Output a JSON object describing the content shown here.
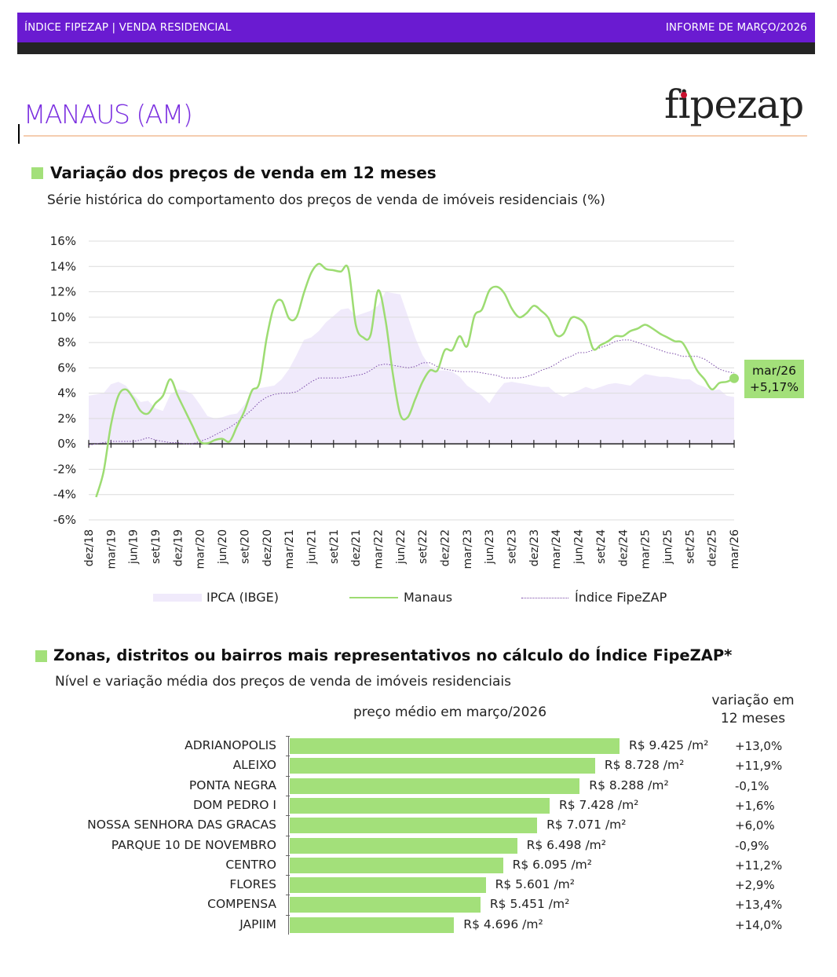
{
  "header": {
    "left_label": "ÍNDICE FIPEZAP | VENDA RESIDENCIAL",
    "right_label": "INFORME DE MARÇO/2026",
    "brand_color": "#6a1bd1"
  },
  "page": {
    "city_title": "MANAUS (AM)",
    "logo_text": "fipezap"
  },
  "section1": {
    "title": "Variação dos preços de venda em 12 meses",
    "subtitle": "Série histórica do comportamento dos preços de venda de imóveis residenciais (%)"
  },
  "chart_data": [
    {
      "type": "line",
      "yticks": [
        "16%",
        "14%",
        "12%",
        "10%",
        "8%",
        "6%",
        "4%",
        "2%",
        "0%",
        "-2%",
        "-4%",
        "-6%"
      ],
      "ylim": [
        -6,
        16
      ],
      "grid": true,
      "xtick_labels": [
        "dez/18",
        "mar/19",
        "jun/19",
        "set/19",
        "dez/19",
        "mar/20",
        "jun/20",
        "set/20",
        "dez/20",
        "mar/21",
        "jun/21",
        "set/21",
        "dez/21",
        "mar/22",
        "jun/22",
        "set/22",
        "dez/22",
        "mar/23",
        "jun/23",
        "set/23",
        "dez/23",
        "mar/24",
        "jun/24",
        "set/24",
        "dez/24",
        "mar/25",
        "jun/25",
        "set/25",
        "dez/25",
        "mar/26"
      ],
      "x_start": "dez/18",
      "x_end": "mar/26",
      "x_frequency": "monthly",
      "legend_position": "bottom",
      "series": [
        {
          "name": "IPCA (IBGE)",
          "kind": "area",
          "color": "#f0eafb",
          "values": [
            3.8,
            3.9,
            4.0,
            4.7,
            4.9,
            4.6,
            3.9,
            3.3,
            3.4,
            2.8,
            2.6,
            3.9,
            4.3,
            4.2,
            3.9,
            3.1,
            2.2,
            2.0,
            2.1,
            2.3,
            2.4,
            3.1,
            4.2,
            4.4,
            4.5,
            4.6,
            5.1,
            5.9,
            7.0,
            8.2,
            8.4,
            8.9,
            9.6,
            10.1,
            10.6,
            10.7,
            10.1,
            10.3,
            10.5,
            10.9,
            12.0,
            11.9,
            11.8,
            10.1,
            8.4,
            7.0,
            6.1,
            5.8,
            5.8,
            5.7,
            5.3,
            4.6,
            4.2,
            3.8,
            3.2,
            4.1,
            4.8,
            4.9,
            4.8,
            4.7,
            4.6,
            4.5,
            4.5,
            4.0,
            3.7,
            4.0,
            4.2,
            4.5,
            4.3,
            4.5,
            4.7,
            4.8,
            4.7,
            4.6,
            5.1,
            5.5,
            5.4,
            5.3,
            5.3,
            5.2,
            5.1,
            5.1,
            4.7,
            4.5,
            4.2,
            4.3,
            3.8,
            3.7
          ]
        },
        {
          "name": "Manaus",
          "kind": "line",
          "color": "#9ddc72",
          "values": [
            null,
            -4.2,
            -2.2,
            1.5,
            3.8,
            4.3,
            3.6,
            2.6,
            2.4,
            3.2,
            3.8,
            5.1,
            3.8,
            2.6,
            1.4,
            0.2,
            0.05,
            0.3,
            0.4,
            0.2,
            1.4,
            2.6,
            4.2,
            4.8,
            8.4,
            10.9,
            11.3,
            9.9,
            10.0,
            11.9,
            13.5,
            14.2,
            13.8,
            13.7,
            13.6,
            13.8,
            9.4,
            8.4,
            8.6,
            12.1,
            9.8,
            5.5,
            2.3,
            2.1,
            3.5,
            4.9,
            5.8,
            5.8,
            7.4,
            7.4,
            8.5,
            7.7,
            10.1,
            10.6,
            12.1,
            12.4,
            11.9,
            10.7,
            10.0,
            10.3,
            10.9,
            10.5,
            9.9,
            8.6,
            8.7,
            9.9,
            9.9,
            9.3,
            7.5,
            7.8,
            8.1,
            8.5,
            8.5,
            8.9,
            9.1,
            9.4,
            9.1,
            8.7,
            8.4,
            8.1,
            8.0,
            7.0,
            5.8,
            5.1,
            4.3,
            4.8,
            4.9,
            5.17
          ]
        },
        {
          "name": "Índice FipeZAP",
          "kind": "dotted",
          "color": "#7a4aa8",
          "values": [
            -0.1,
            0,
            0.1,
            0.2,
            0.2,
            0.2,
            0.2,
            0.3,
            0.5,
            0.3,
            0.2,
            0.1,
            0.1,
            0,
            0,
            0.2,
            0.4,
            0.7,
            1.0,
            1.3,
            1.7,
            2.2,
            2.7,
            3.3,
            3.7,
            3.9,
            4.0,
            4.0,
            4.1,
            4.5,
            4.9,
            5.2,
            5.2,
            5.2,
            5.2,
            5.3,
            5.4,
            5.5,
            5.8,
            6.2,
            6.3,
            6.2,
            6.1,
            6.0,
            6.1,
            6.4,
            6.4,
            6.1,
            5.9,
            5.8,
            5.7,
            5.7,
            5.7,
            5.6,
            5.5,
            5.4,
            5.2,
            5.2,
            5.2,
            5.3,
            5.5,
            5.8,
            6.0,
            6.3,
            6.7,
            6.9,
            7.2,
            7.2,
            7.4,
            7.6,
            7.8,
            8.1,
            8.2,
            8.2,
            8.0,
            7.8,
            7.6,
            7.4,
            7.2,
            7.1,
            6.9,
            6.9,
            6.9,
            6.7,
            6.3,
            5.9,
            5.7,
            5.6
          ]
        }
      ],
      "annotation": {
        "label": "mar/26",
        "value": "+5,17%"
      }
    },
    {
      "type": "bar",
      "orientation": "horizontal",
      "title": "preço médio em março/2026",
      "variation_header_line1": "variação em",
      "variation_header_line2": "12 meses",
      "bar_color": "#a3e07a",
      "categories": [
        "ADRIANOPOLIS",
        "ALEIXO",
        "PONTA NEGRA",
        "DOM PEDRO I",
        "NOSSA SENHORA DAS GRACAS",
        "PARQUE 10 DE NOVEMBRO",
        "CENTRO",
        "FLORES",
        "COMPENSA",
        "JAPIIM"
      ],
      "values": [
        9425,
        8728,
        8288,
        7428,
        7071,
        6498,
        6095,
        5601,
        5451,
        4696
      ],
      "value_labels": [
        "R$ 9.425 /m²",
        "R$ 8.728 /m²",
        "R$ 8.288 /m²",
        "R$ 7.428 /m²",
        "R$ 7.071 /m²",
        "R$ 6.498 /m²",
        "R$ 6.095 /m²",
        "R$ 5.601 /m²",
        "R$ 5.451 /m²",
        "R$ 4.696 /m²"
      ],
      "variation_labels": [
        "+13,0%",
        "+11,9%",
        "-0,1%",
        "+1,6%",
        "+6,0%",
        "-0,9%",
        "+11,2%",
        "+2,9%",
        "+13,4%",
        "+14,0%"
      ]
    }
  ],
  "section2": {
    "title": "Zonas, distritos ou bairros mais representativos no cálculo do Índice FipeZAP*",
    "subtitle": "Nível e variação média dos preços de venda de imóveis residenciais"
  }
}
